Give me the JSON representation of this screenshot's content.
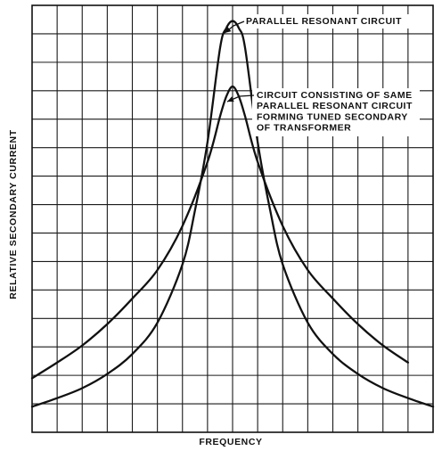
{
  "chart_data": {
    "type": "line",
    "xlabel": "FREQUENCY",
    "ylabel": "RELATIVE SECONDARY CURRENT",
    "xlim": [
      -8,
      8
    ],
    "ylim": [
      0,
      15
    ],
    "grid": true,
    "series": [
      {
        "name": "PARALLEL RESONANT CIRCUIT",
        "x": [
          -8,
          -7,
          -6,
          -5,
          -4,
          -3,
          -2,
          -1.5,
          -1,
          -0.5,
          -0.25,
          0,
          0.25,
          0.5,
          1,
          1.5,
          2,
          3,
          4,
          5,
          6,
          7,
          8
        ],
        "y": [
          0.9,
          1.2,
          1.55,
          2.05,
          2.75,
          3.85,
          5.9,
          7.8,
          10.2,
          13.5,
          14.2,
          14.45,
          14.2,
          13.5,
          10.2,
          7.8,
          5.9,
          3.85,
          2.75,
          2.05,
          1.55,
          1.2,
          0.9
        ]
      },
      {
        "name": "CIRCUIT CONSISTING OF SAME PARALLEL RESONANT CIRCUIT FORMING TUNED SECONDARY OF TRANSFORMER",
        "x": [
          -8,
          -7,
          -6,
          -5,
          -4,
          -3,
          -2,
          -1,
          -0.5,
          -0.25,
          0,
          0.25,
          0.5,
          1,
          2,
          3,
          4,
          5,
          6,
          7
        ],
        "y": [
          1.9,
          2.45,
          3.05,
          3.8,
          4.7,
          5.7,
          7.25,
          9.5,
          11.1,
          11.8,
          12.15,
          11.8,
          11.1,
          9.5,
          7.25,
          5.7,
          4.7,
          3.8,
          3.05,
          2.45
        ]
      }
    ],
    "annotations": [
      {
        "lines": [
          "PARALLEL RESONANT CIRCUIT"
        ]
      },
      {
        "lines": [
          "CIRCUIT CONSISTING OF SAME",
          "PARALLEL RESONANT CIRCUIT",
          "FORMING TUNED SECONDARY",
          "OF TRANSFORMER"
        ]
      }
    ]
  }
}
